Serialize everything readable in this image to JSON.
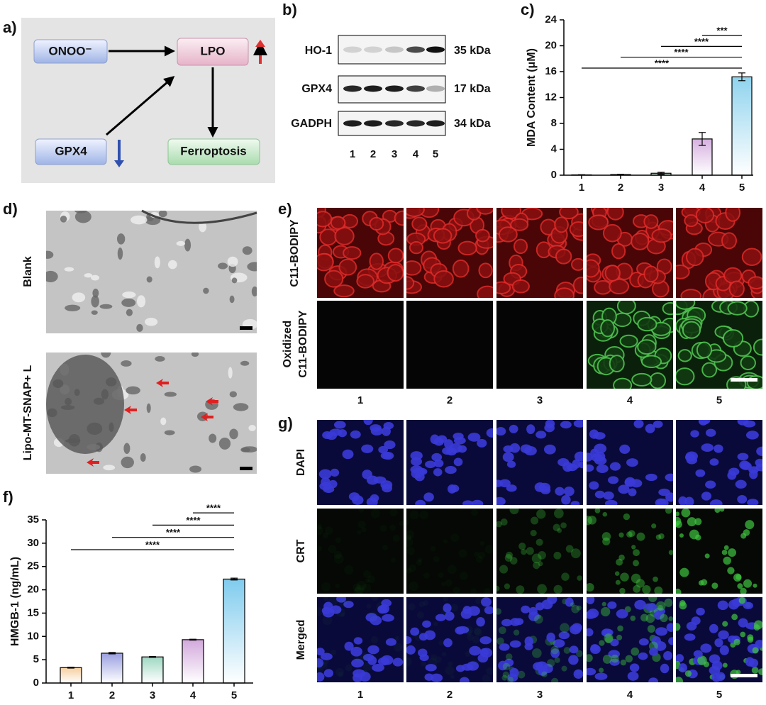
{
  "panel_labels": [
    "a)",
    "b)",
    "c)",
    "d)",
    "e)",
    "f)",
    "g)"
  ],
  "diagram": {
    "nodes": [
      "ONOO⁻",
      "LPO",
      "GPX4",
      "Ferroptosis"
    ]
  },
  "blot": {
    "proteins": [
      "HO-1",
      "GPX4",
      "GADPH"
    ],
    "sizes": [
      "35 kDa",
      "17 kDa",
      "34 kDa"
    ],
    "lanes": [
      "1",
      "2",
      "3",
      "4",
      "5"
    ]
  },
  "tem": {
    "rows": [
      "Blank",
      "Lipo-MT-SNAP+ L"
    ]
  },
  "bodipy": {
    "rows": [
      [
        "C11-BODIPY"
      ],
      [
        "Oxidized",
        "C11-BODIPY"
      ]
    ],
    "lanes": [
      "1",
      "2",
      "3",
      "4",
      "5"
    ]
  },
  "crt": {
    "rows": [
      "DAPI",
      "CRT",
      "Merged"
    ],
    "lanes": [
      "1",
      "2",
      "3",
      "4",
      "5"
    ]
  },
  "chart_data": [
    {
      "type": "bar",
      "ylabel": "MDA Content (μM)",
      "categories": [
        "1",
        "2",
        "3",
        "4",
        "5"
      ],
      "values": [
        0.05,
        0.1,
        0.3,
        5.6,
        15.2
      ],
      "errors": [
        0.03,
        0.05,
        0.15,
        1.0,
        0.6
      ],
      "colors": [
        "#f2c79a",
        "#b9b3e6",
        "#a8dcc0",
        "#d6b0e0",
        "#8fd3ee"
      ],
      "ylim": [
        0,
        24
      ],
      "yticks": [
        0,
        4,
        8,
        12,
        16,
        20,
        24
      ],
      "comparisons": [
        {
          "groups": [
            "1",
            "5"
          ],
          "label": "****"
        },
        {
          "groups": [
            "2",
            "5"
          ],
          "label": "****"
        },
        {
          "groups": [
            "3",
            "5"
          ],
          "label": "****"
        },
        {
          "groups": [
            "4",
            "5"
          ],
          "label": "***"
        }
      ]
    },
    {
      "type": "bar",
      "ylabel": "HMGB-1 (ng/mL)",
      "categories": [
        "1",
        "2",
        "3",
        "4",
        "5"
      ],
      "values": [
        3.3,
        6.4,
        5.6,
        9.3,
        22.3
      ],
      "errors": [
        0.1,
        0.15,
        0.1,
        0.1,
        0.2
      ],
      "colors": [
        "#f5cf9e",
        "#9a9fe0",
        "#9fd8c2",
        "#d2a8dc",
        "#7fcbee"
      ],
      "ylim": [
        0,
        35
      ],
      "yticks": [
        0,
        5,
        10,
        15,
        20,
        25,
        30,
        35
      ],
      "comparisons": [
        {
          "groups": [
            "1",
            "5"
          ],
          "label": "****"
        },
        {
          "groups": [
            "2",
            "5"
          ],
          "label": "****"
        },
        {
          "groups": [
            "3",
            "5"
          ],
          "label": "****"
        },
        {
          "groups": [
            "4",
            "5"
          ],
          "label": "****"
        }
      ]
    }
  ]
}
